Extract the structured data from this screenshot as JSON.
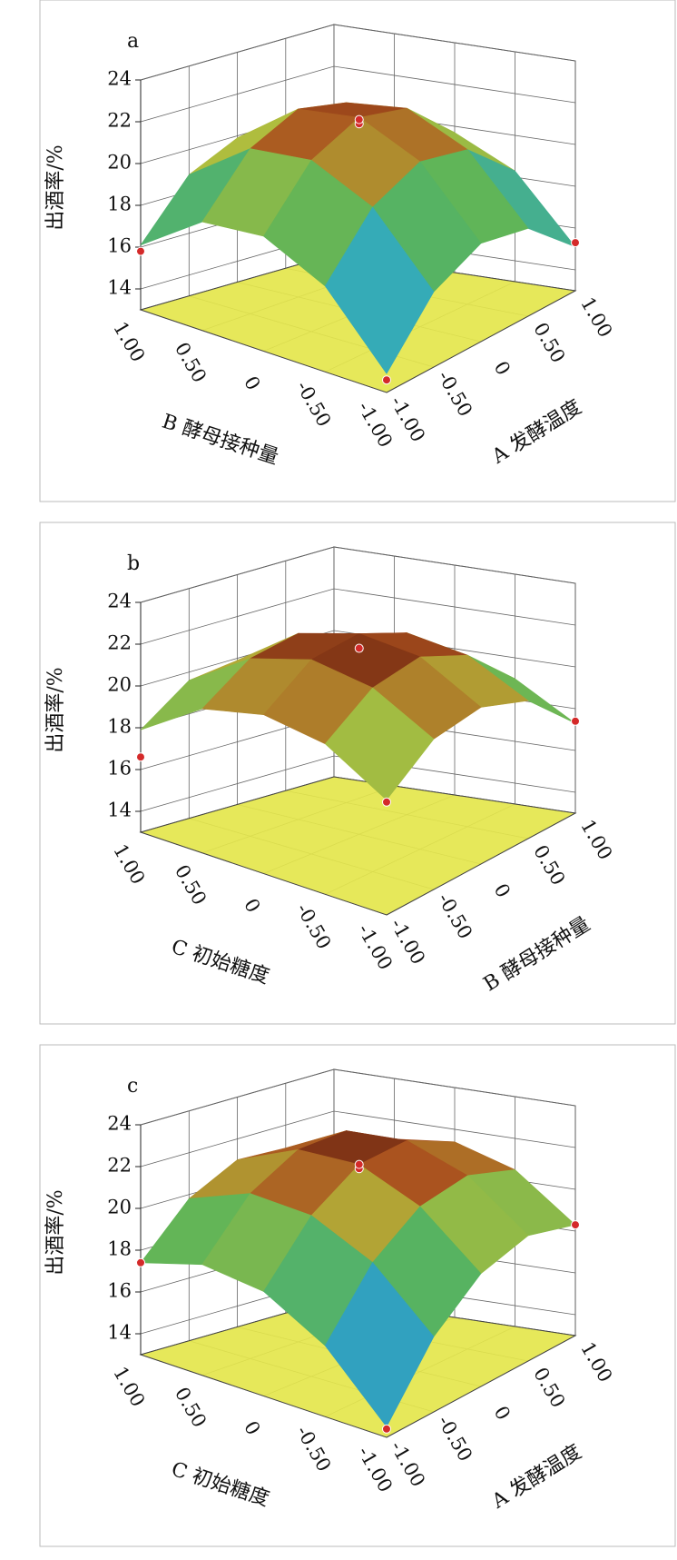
{
  "chart_data": [
    {
      "type": "surface3d",
      "panel_label": "a",
      "zlabel": "出酒率/%",
      "xlabel": "A 发酵温度",
      "ylabel": "B 酵母接种量",
      "xlim": [
        -1,
        1
      ],
      "ylim": [
        -1,
        1
      ],
      "zlim": [
        13,
        24
      ],
      "xticks": [
        {
          "value": -1,
          "label": "-1.00"
        },
        {
          "value": -0.5,
          "label": "-0.50"
        },
        0,
        {
          "value": 0.5,
          "label": "0.50"
        },
        {
          "value": 1,
          "label": "1.00"
        }
      ],
      "yticks": [
        {
          "value": -1,
          "label": "-1.00"
        },
        {
          "value": -0.5,
          "label": "-0.50"
        },
        0,
        {
          "value": 0.5,
          "label": "0.50"
        },
        {
          "value": 1,
          "label": "1.00"
        }
      ],
      "zticks": [
        14,
        16,
        18,
        20,
        22,
        24
      ],
      "z": [
        [
          13.9,
          16.6,
          17.7,
          17.2,
          15.1
        ],
        [
          17.1,
          19.8,
          20.9,
          20.4,
          18.3
        ],
        [
          18.5,
          21.2,
          22.3,
          21.8,
          19.7
        ],
        [
          18.2,
          20.9,
          22.0,
          21.5,
          19.4
        ],
        [
          16.1,
          18.8,
          19.9,
          19.4,
          17.3
        ]
      ],
      "points": {
        "x": [
          0,
          0,
          -1,
          -1,
          1
        ],
        "y": [
          0,
          0,
          1,
          -1,
          -1
        ],
        "z": [
          22.0,
          22.2,
          15.8,
          13.6,
          15.3
        ]
      },
      "floor_color": "#e4e64c",
      "point_color": "#d42a2a"
    },
    {
      "type": "surface3d",
      "panel_label": "b",
      "zlabel": "出酒率/%",
      "xlabel": "B 酵母接种量",
      "ylabel": "C 初始糖度",
      "xlim": [
        -1,
        1
      ],
      "ylim": [
        -1,
        1
      ],
      "zlim": [
        13,
        24
      ],
      "xticks": [
        {
          "value": -1,
          "label": "-1.00"
        },
        {
          "value": -0.5,
          "label": "-0.50"
        },
        0,
        {
          "value": 0.5,
          "label": "0.50"
        },
        {
          "value": 1,
          "label": "1.00"
        }
      ],
      "yticks": [
        {
          "value": -1,
          "label": "-1.00"
        },
        {
          "value": -0.5,
          "label": "-0.50"
        },
        0,
        {
          "value": 0.5,
          "label": "0.50"
        },
        {
          "value": 1,
          "label": "1.00"
        }
      ],
      "zticks": [
        14,
        16,
        18,
        20,
        22,
        24
      ],
      "z": [
        [
          18.5,
          20.2,
          20.5,
          19.6,
          17.3
        ],
        [
          20.2,
          21.8,
          22.2,
          21.2,
          19.0
        ],
        [
          20.6,
          22.3,
          22.6,
          21.7,
          19.4
        ],
        [
          19.9,
          21.5,
          21.9,
          20.9,
          18.7
        ],
        [
          17.9,
          19.6,
          19.9,
          19.0,
          16.7
        ]
      ],
      "points": {
        "x": [
          0,
          -1,
          1,
          -1
        ],
        "y": [
          0,
          1,
          -1,
          -1
        ],
        "z": [
          21.9,
          16.6,
          17.4,
          18.4
        ]
      },
      "floor_color": "#e4e64c",
      "point_color": "#d42a2a"
    },
    {
      "type": "surface3d",
      "panel_label": "c",
      "zlabel": "出酒率/%",
      "xlabel": "A 发酵温度",
      "ylabel": "C 初始糖度",
      "xlim": [
        -1,
        1
      ],
      "ylim": [
        -1,
        1
      ],
      "zlim": [
        13,
        24
      ],
      "xticks": [
        {
          "value": -1,
          "label": "-1.00"
        },
        {
          "value": -0.5,
          "label": "-0.50"
        },
        0,
        {
          "value": 0.5,
          "label": "0.50"
        },
        {
          "value": 1,
          "label": "1.00"
        }
      ],
      "yticks": [
        {
          "value": -1,
          "label": "-1.00"
        },
        {
          "value": -0.5,
          "label": "-0.50"
        },
        0,
        {
          "value": 0.5,
          "label": "0.50"
        },
        {
          "value": 1,
          "label": "1.00"
        }
      ],
      "zticks": [
        14,
        16,
        18,
        20,
        22,
        24
      ],
      "z": [
        [
          13.5,
          16.6,
          18.4,
          19.0,
          18.3
        ],
        [
          16.4,
          19.3,
          20.9,
          21.3,
          20.5
        ],
        [
          18.0,
          20.7,
          22.2,
          22.4,
          21.4
        ],
        [
          18.3,
          20.9,
          22.2,
          22.3,
          21.1
        ],
        [
          17.4,
          19.8,
          21.0,
          20.9,
          19.5
        ]
      ],
      "points": {
        "x": [
          0,
          0,
          -1,
          1,
          -1
        ],
        "y": [
          0,
          0,
          1,
          -1,
          -1
        ],
        "z": [
          22.0,
          22.2,
          17.4,
          18.3,
          13.4
        ]
      },
      "floor_color": "#e4e64c",
      "point_color": "#d42a2a"
    }
  ]
}
